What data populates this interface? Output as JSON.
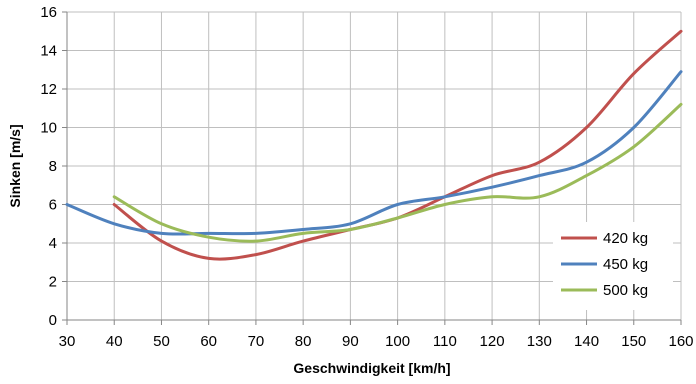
{
  "chart_data": {
    "type": "line",
    "title": "",
    "xlabel": "Geschwindigkeit [km/h]",
    "ylabel": "Sinken  [m/s]",
    "xlim": [
      30,
      160
    ],
    "ylim": [
      0,
      16
    ],
    "xticks": [
      "30",
      "40",
      "50",
      "60",
      "70",
      "80",
      "90",
      "100",
      "110",
      "120",
      "130",
      "140",
      "150",
      "160"
    ],
    "yticks": [
      "0",
      "2",
      "4",
      "6",
      "8",
      "10",
      "12",
      "14",
      "16"
    ],
    "grid": "both",
    "legend_position": "bottom-right",
    "series": [
      {
        "name": "420 kg",
        "color": "#C0504D",
        "x": [
          40,
          50,
          60,
          70,
          80,
          90,
          100,
          110,
          120,
          130,
          140,
          150,
          160
        ],
        "y": [
          6.0,
          4.1,
          3.2,
          3.4,
          4.1,
          4.7,
          5.3,
          6.4,
          7.5,
          8.2,
          10.0,
          12.8,
          15.0
        ]
      },
      {
        "name": "450 kg",
        "color": "#4F81BD",
        "x": [
          30,
          40,
          50,
          60,
          70,
          80,
          90,
          100,
          110,
          120,
          130,
          140,
          150,
          160
        ],
        "y": [
          6.0,
          5.0,
          4.5,
          4.5,
          4.5,
          4.7,
          5.0,
          6.0,
          6.4,
          6.9,
          7.5,
          8.2,
          10.0,
          12.9
        ]
      },
      {
        "name": "500 kg",
        "color": "#9BBB59",
        "x": [
          40,
          50,
          60,
          70,
          80,
          90,
          100,
          110,
          120,
          130,
          140,
          150,
          160
        ],
        "y": [
          6.4,
          5.0,
          4.3,
          4.1,
          4.5,
          4.7,
          5.3,
          6.0,
          6.4,
          6.4,
          7.5,
          9.0,
          11.2
        ]
      }
    ]
  }
}
